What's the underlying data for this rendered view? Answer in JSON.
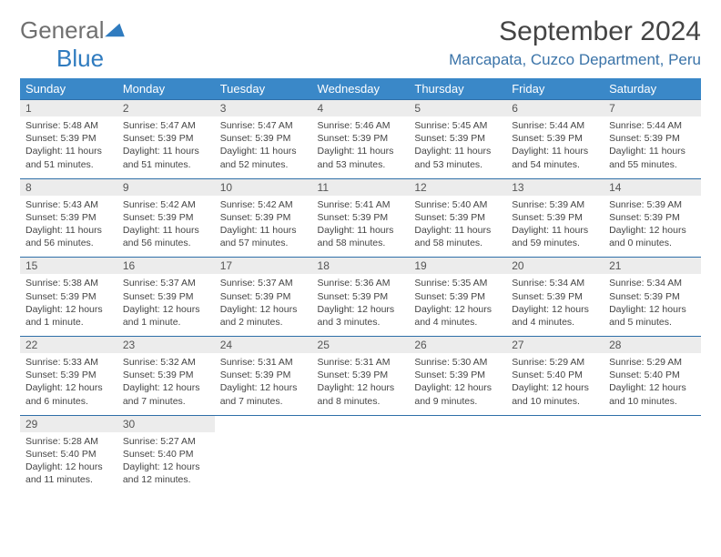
{
  "logo": {
    "general": "General",
    "blue": "Blue"
  },
  "header": {
    "month_title": "September 2024",
    "location": "Marcapata, Cuzco Department, Peru"
  },
  "colors": {
    "header_bg": "#3a88c8",
    "header_text": "#ffffff",
    "daynum_bg": "#ececec",
    "rule": "#2f6fa8",
    "location_text": "#3a73a8"
  },
  "weekdays": [
    "Sunday",
    "Monday",
    "Tuesday",
    "Wednesday",
    "Thursday",
    "Friday",
    "Saturday"
  ],
  "days": [
    {
      "n": "1",
      "sr": "Sunrise: 5:48 AM",
      "ss": "Sunset: 5:39 PM",
      "dl": "Daylight: 11 hours and 51 minutes."
    },
    {
      "n": "2",
      "sr": "Sunrise: 5:47 AM",
      "ss": "Sunset: 5:39 PM",
      "dl": "Daylight: 11 hours and 51 minutes."
    },
    {
      "n": "3",
      "sr": "Sunrise: 5:47 AM",
      "ss": "Sunset: 5:39 PM",
      "dl": "Daylight: 11 hours and 52 minutes."
    },
    {
      "n": "4",
      "sr": "Sunrise: 5:46 AM",
      "ss": "Sunset: 5:39 PM",
      "dl": "Daylight: 11 hours and 53 minutes."
    },
    {
      "n": "5",
      "sr": "Sunrise: 5:45 AM",
      "ss": "Sunset: 5:39 PM",
      "dl": "Daylight: 11 hours and 53 minutes."
    },
    {
      "n": "6",
      "sr": "Sunrise: 5:44 AM",
      "ss": "Sunset: 5:39 PM",
      "dl": "Daylight: 11 hours and 54 minutes."
    },
    {
      "n": "7",
      "sr": "Sunrise: 5:44 AM",
      "ss": "Sunset: 5:39 PM",
      "dl": "Daylight: 11 hours and 55 minutes."
    },
    {
      "n": "8",
      "sr": "Sunrise: 5:43 AM",
      "ss": "Sunset: 5:39 PM",
      "dl": "Daylight: 11 hours and 56 minutes."
    },
    {
      "n": "9",
      "sr": "Sunrise: 5:42 AM",
      "ss": "Sunset: 5:39 PM",
      "dl": "Daylight: 11 hours and 56 minutes."
    },
    {
      "n": "10",
      "sr": "Sunrise: 5:42 AM",
      "ss": "Sunset: 5:39 PM",
      "dl": "Daylight: 11 hours and 57 minutes."
    },
    {
      "n": "11",
      "sr": "Sunrise: 5:41 AM",
      "ss": "Sunset: 5:39 PM",
      "dl": "Daylight: 11 hours and 58 minutes."
    },
    {
      "n": "12",
      "sr": "Sunrise: 5:40 AM",
      "ss": "Sunset: 5:39 PM",
      "dl": "Daylight: 11 hours and 58 minutes."
    },
    {
      "n": "13",
      "sr": "Sunrise: 5:39 AM",
      "ss": "Sunset: 5:39 PM",
      "dl": "Daylight: 11 hours and 59 minutes."
    },
    {
      "n": "14",
      "sr": "Sunrise: 5:39 AM",
      "ss": "Sunset: 5:39 PM",
      "dl": "Daylight: 12 hours and 0 minutes."
    },
    {
      "n": "15",
      "sr": "Sunrise: 5:38 AM",
      "ss": "Sunset: 5:39 PM",
      "dl": "Daylight: 12 hours and 1 minute."
    },
    {
      "n": "16",
      "sr": "Sunrise: 5:37 AM",
      "ss": "Sunset: 5:39 PM",
      "dl": "Daylight: 12 hours and 1 minute."
    },
    {
      "n": "17",
      "sr": "Sunrise: 5:37 AM",
      "ss": "Sunset: 5:39 PM",
      "dl": "Daylight: 12 hours and 2 minutes."
    },
    {
      "n": "18",
      "sr": "Sunrise: 5:36 AM",
      "ss": "Sunset: 5:39 PM",
      "dl": "Daylight: 12 hours and 3 minutes."
    },
    {
      "n": "19",
      "sr": "Sunrise: 5:35 AM",
      "ss": "Sunset: 5:39 PM",
      "dl": "Daylight: 12 hours and 4 minutes."
    },
    {
      "n": "20",
      "sr": "Sunrise: 5:34 AM",
      "ss": "Sunset: 5:39 PM",
      "dl": "Daylight: 12 hours and 4 minutes."
    },
    {
      "n": "21",
      "sr": "Sunrise: 5:34 AM",
      "ss": "Sunset: 5:39 PM",
      "dl": "Daylight: 12 hours and 5 minutes."
    },
    {
      "n": "22",
      "sr": "Sunrise: 5:33 AM",
      "ss": "Sunset: 5:39 PM",
      "dl": "Daylight: 12 hours and 6 minutes."
    },
    {
      "n": "23",
      "sr": "Sunrise: 5:32 AM",
      "ss": "Sunset: 5:39 PM",
      "dl": "Daylight: 12 hours and 7 minutes."
    },
    {
      "n": "24",
      "sr": "Sunrise: 5:31 AM",
      "ss": "Sunset: 5:39 PM",
      "dl": "Daylight: 12 hours and 7 minutes."
    },
    {
      "n": "25",
      "sr": "Sunrise: 5:31 AM",
      "ss": "Sunset: 5:39 PM",
      "dl": "Daylight: 12 hours and 8 minutes."
    },
    {
      "n": "26",
      "sr": "Sunrise: 5:30 AM",
      "ss": "Sunset: 5:39 PM",
      "dl": "Daylight: 12 hours and 9 minutes."
    },
    {
      "n": "27",
      "sr": "Sunrise: 5:29 AM",
      "ss": "Sunset: 5:40 PM",
      "dl": "Daylight: 12 hours and 10 minutes."
    },
    {
      "n": "28",
      "sr": "Sunrise: 5:29 AM",
      "ss": "Sunset: 5:40 PM",
      "dl": "Daylight: 12 hours and 10 minutes."
    },
    {
      "n": "29",
      "sr": "Sunrise: 5:28 AM",
      "ss": "Sunset: 5:40 PM",
      "dl": "Daylight: 12 hours and 11 minutes."
    },
    {
      "n": "30",
      "sr": "Sunrise: 5:27 AM",
      "ss": "Sunset: 5:40 PM",
      "dl": "Daylight: 12 hours and 12 minutes."
    }
  ],
  "start_weekday": 0,
  "trailing_blanks": 5
}
